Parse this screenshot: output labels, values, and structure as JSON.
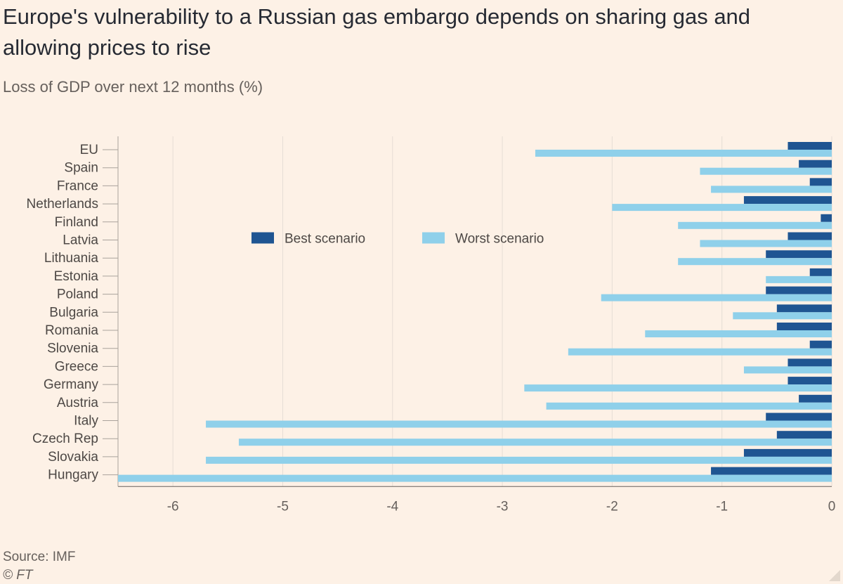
{
  "header": {
    "title": "Europe's vulnerability to a Russian gas embargo depends on sharing gas and allowing prices to rise",
    "subtitle": "Loss of GDP over next 12 months (%)"
  },
  "footer": {
    "source": "Source: IMF",
    "credit": "© FT"
  },
  "colors": {
    "background": "#fdf1e6",
    "best": "#1f5592",
    "worst": "#8fd0ea",
    "grid": "#e6ddd5",
    "text": "#33302e"
  },
  "chart_data": {
    "type": "bar",
    "orientation": "horizontal",
    "title": "Europe's vulnerability to a Russian gas embargo depends on sharing gas and allowing prices to rise",
    "subtitle": "Loss of GDP over next 12 months (%)",
    "categories": [
      "EU",
      "Spain",
      "France",
      "Netherlands",
      "Finland",
      "Latvia",
      "Lithuania",
      "Estonia",
      "Poland",
      "Bulgaria",
      "Romania",
      "Slovenia",
      "Greece",
      "Germany",
      "Austria",
      "Italy",
      "Czech Rep",
      "Slovakia",
      "Hungary"
    ],
    "series": [
      {
        "name": "Best scenario",
        "color": "#1f5592",
        "values": [
          -0.4,
          -0.3,
          -0.2,
          -0.8,
          -0.1,
          -0.4,
          -0.6,
          -0.2,
          -0.6,
          -0.5,
          -0.5,
          -0.2,
          -0.4,
          -0.4,
          -0.3,
          -0.6,
          -0.5,
          -0.8,
          -1.1
        ]
      },
      {
        "name": "Worst scenario",
        "color": "#8fd0ea",
        "values": [
          -2.7,
          -1.2,
          -1.1,
          -2.0,
          -1.4,
          -1.2,
          -1.4,
          -0.6,
          -2.1,
          -0.9,
          -1.7,
          -2.4,
          -0.8,
          -2.8,
          -2.6,
          -5.7,
          -5.4,
          -5.7,
          -6.5
        ]
      }
    ],
    "xlim": [
      -6.5,
      0
    ],
    "xticks": [
      -6,
      -5,
      -4,
      -3,
      -2,
      -1,
      0
    ],
    "grid": true,
    "legend_position": "top-center",
    "xlabel": "",
    "ylabel": ""
  }
}
